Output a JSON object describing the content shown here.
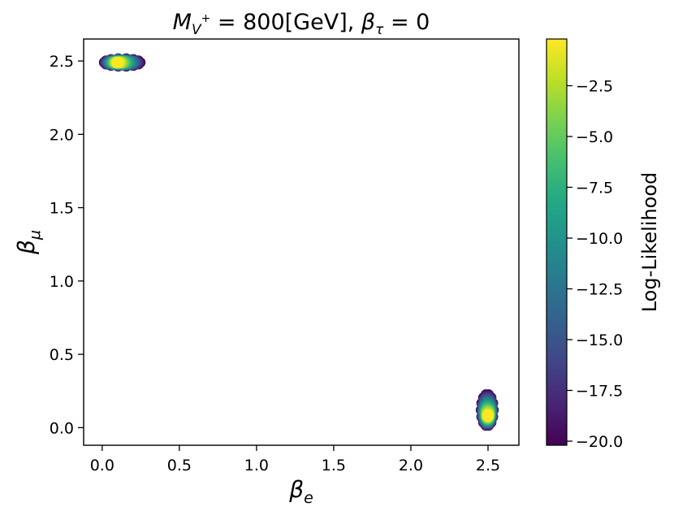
{
  "chart_data": {
    "type": "scatter",
    "title": "M_{V⁺} = 800[GeV], β_τ = 0",
    "title_parts": {
      "mass_symbol": "M",
      "mass_sub": "V",
      "mass_sup": "+",
      "mass_value": " = 800[GeV], ",
      "beta_symbol": "β",
      "beta_sub": "τ",
      "beta_value": " = 0"
    },
    "xlabel": {
      "symbol": "β",
      "sub": "e"
    },
    "ylabel": {
      "symbol": "β",
      "sub": "μ"
    },
    "xlim": [
      -0.12,
      2.7
    ],
    "ylim": [
      -0.12,
      2.65
    ],
    "xticks": [
      0.0,
      0.5,
      1.0,
      1.5,
      2.0,
      2.5
    ],
    "xtick_labels": [
      "0.0",
      "0.5",
      "1.0",
      "1.5",
      "2.0",
      "2.5"
    ],
    "yticks": [
      0.0,
      0.5,
      1.0,
      1.5,
      2.0,
      2.5
    ],
    "ytick_labels": [
      "0.0",
      "0.5",
      "1.0",
      "1.5",
      "2.0",
      "2.5"
    ],
    "grid": false,
    "colorbar": {
      "label": "Log-Likelihood",
      "colormap": "viridis",
      "range": [
        -20.2,
        -0.2
      ],
      "ticks": [
        -2.5,
        -5.0,
        -7.5,
        -10.0,
        -12.5,
        -15.0,
        -17.5,
        -20.0
      ],
      "tick_labels": [
        "−2.5",
        "−5.0",
        "−7.5",
        "−10.0",
        "−12.5",
        "−15.0",
        "−17.5",
        "−20.0"
      ]
    },
    "clusters": [
      {
        "name": "",
        "center_x": 0.1,
        "center_y": 2.49,
        "x_range": [
          0.0,
          0.26
        ],
        "y_range": [
          2.46,
          2.52
        ],
        "best_value": -0.3,
        "edge_value": -20.0
      },
      {
        "name": "",
        "center_x": 2.5,
        "center_y": 0.08,
        "x_range": [
          2.45,
          2.54
        ],
        "y_range": [
          0.0,
          0.24
        ],
        "best_value": -0.3,
        "edge_value": -20.0
      }
    ]
  }
}
